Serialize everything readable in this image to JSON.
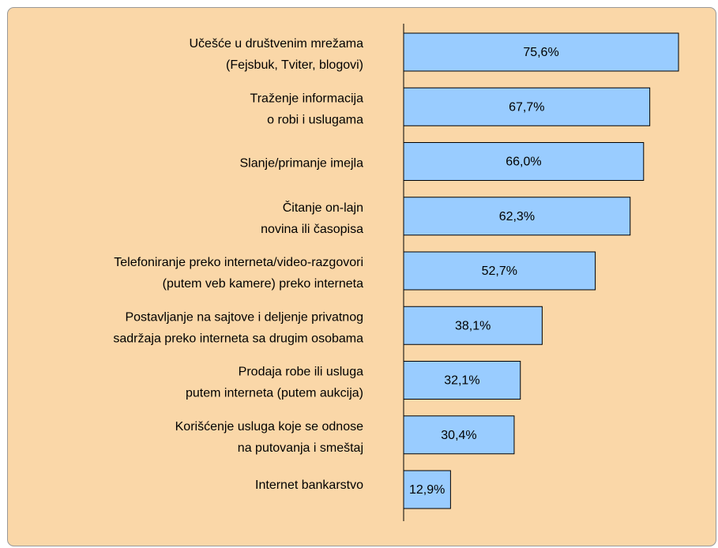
{
  "chart_data": {
    "type": "hbar",
    "categories": [
      [
        "Učešće u društvenim mrežama",
        "(Fejsbuk, Tviter, blogovi)"
      ],
      [
        "Traženje informacija",
        "o robi i uslugama"
      ],
      [
        "Slanje/primanje imejla"
      ],
      [
        "Čitanje on-lajn",
        "novina ili časopisa"
      ],
      [
        "Telefoniranje preko interneta/video-razgovori",
        "(putem veb kamere) preko interneta"
      ],
      [
        "Postavljanje na sajtove i deljenje privatnog",
        "sadržaja preko interneta sa drugim osobama"
      ],
      [
        "Prodaja robe ili usluga",
        "putem interneta (putem aukcija)"
      ],
      [
        "Korišćenje usluga koje se odnose",
        "na putovanja i smeštaj"
      ],
      [
        "Internet bankarstvo"
      ]
    ],
    "values": [
      75.6,
      67.7,
      66.0,
      62.3,
      52.7,
      38.1,
      32.1,
      30.4,
      12.9
    ],
    "value_labels": [
      "75,6%",
      "67,7%",
      "66,0%",
      "62,3%",
      "52,7%",
      "38,1%",
      "32,1%",
      "30,4%",
      "12,9%"
    ],
    "color": "#99ccff"
  }
}
